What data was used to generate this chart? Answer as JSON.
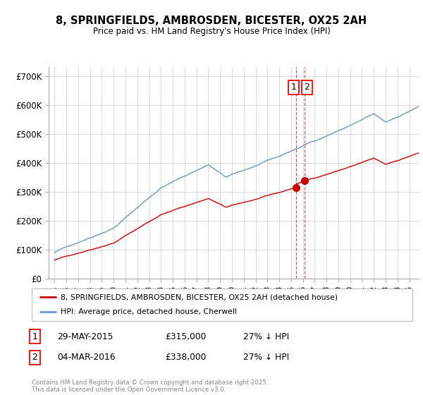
{
  "title": "8, SPRINGFIELDS, AMBROSDEN, BICESTER, OX25 2AH",
  "subtitle": "Price paid vs. HM Land Registry's House Price Index (HPI)",
  "ylim": [
    0,
    730000
  ],
  "yticks": [
    0,
    100000,
    200000,
    300000,
    400000,
    500000,
    600000,
    700000
  ],
  "ytick_labels": [
    "£0",
    "£100K",
    "£200K",
    "£300K",
    "£400K",
    "£500K",
    "£600K",
    "£700K"
  ],
  "red_line_color": "#cc0000",
  "blue_line_color": "#6699cc",
  "marker1_date_x": 2015.41,
  "marker1_y": 315000,
  "marker2_date_x": 2016.17,
  "marker2_y": 338000,
  "vline1_x": 2015.41,
  "vline2_x": 2016.17,
  "legend_line1": "8, SPRINGFIELDS, AMBROSDEN, BICESTER, OX25 2AH (detached house)",
  "legend_line2": "HPI: Average price, detached house, Cherwell",
  "table_row1": [
    "1",
    "29-MAY-2015",
    "£315,000",
    "27% ↓ HPI"
  ],
  "table_row2": [
    "2",
    "04-MAR-2016",
    "£338,000",
    "27% ↓ HPI"
  ],
  "footer": "Contains HM Land Registry data © Crown copyright and database right 2025.\nThis data is licensed under the Open Government Licence v3.0.",
  "background_color": "#ffffff",
  "grid_color": "#cccccc",
  "xlim_left": 1994.5,
  "xlim_right": 2025.8
}
